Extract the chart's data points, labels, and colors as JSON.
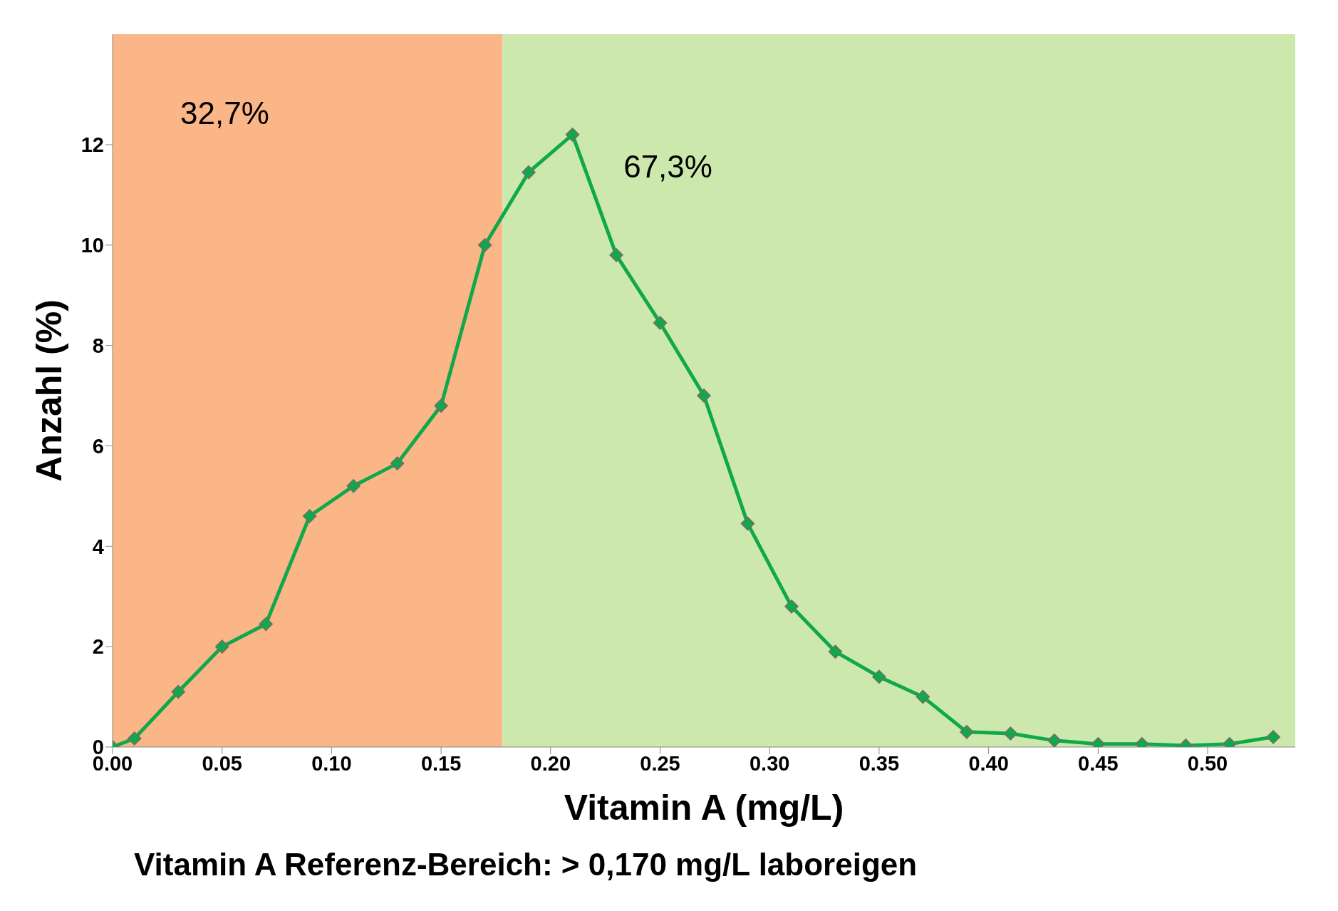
{
  "chart_data": {
    "type": "line",
    "xlabel": "Vitamin A (mg/L)",
    "ylabel": "Anzahl (%)",
    "x": [
      0.0,
      0.01,
      0.03,
      0.05,
      0.07,
      0.09,
      0.11,
      0.13,
      0.15,
      0.17,
      0.19,
      0.21,
      0.23,
      0.25,
      0.27,
      0.29,
      0.31,
      0.33,
      0.35,
      0.37,
      0.39,
      0.41,
      0.43,
      0.45,
      0.47,
      0.49,
      0.51,
      0.53
    ],
    "series": [
      {
        "color": "#0fa84a",
        "values": [
          0,
          0.17,
          1.1,
          2.0,
          2.45,
          4.6,
          5.2,
          5.65,
          6.8,
          10.0,
          11.45,
          12.2,
          9.8,
          8.45,
          7.0,
          4.45,
          2.8,
          1.9,
          1.4,
          1.0,
          0.3,
          0.27,
          0.13,
          0.06,
          0.06,
          0.03,
          0.06,
          0.2
        ]
      }
    ],
    "xlim": [
      0,
      0.54
    ],
    "xticks": [
      {
        "value": 0,
        "label": "0.00"
      },
      {
        "value": 0.05,
        "label": "0.05"
      },
      {
        "value": 0.1,
        "label": "0.10"
      },
      {
        "value": 0.15,
        "label": "0.15"
      },
      {
        "value": 0.2,
        "label": "0.20"
      },
      {
        "value": 0.25,
        "label": "0.25"
      },
      {
        "value": 0.3,
        "label": "0.30"
      },
      {
        "value": 0.35,
        "label": "0.35"
      },
      {
        "value": 0.4,
        "label": "0.40"
      },
      {
        "value": 0.45,
        "label": "0.45"
      },
      {
        "value": 0.5,
        "label": "0.50"
      }
    ],
    "ylim": [
      0,
      14.2
    ],
    "yticks": [
      0,
      2,
      4,
      6,
      8,
      10,
      12
    ],
    "bands": [
      {
        "axis": "x",
        "from": 0,
        "to": 0.178,
        "label": "32,7%",
        "color": "#fbb687"
      },
      {
        "axis": "x",
        "from": 0.178,
        "to": 0.54,
        "label": "67,3%",
        "color": "#cce8ac"
      }
    ],
    "annotations": [
      "Vitamin A Referenz-Bereich: > 0,170 mg/L laboreigen"
    ],
    "marker": "diamond",
    "line_style": "solid",
    "grid": false,
    "legend": false
  }
}
